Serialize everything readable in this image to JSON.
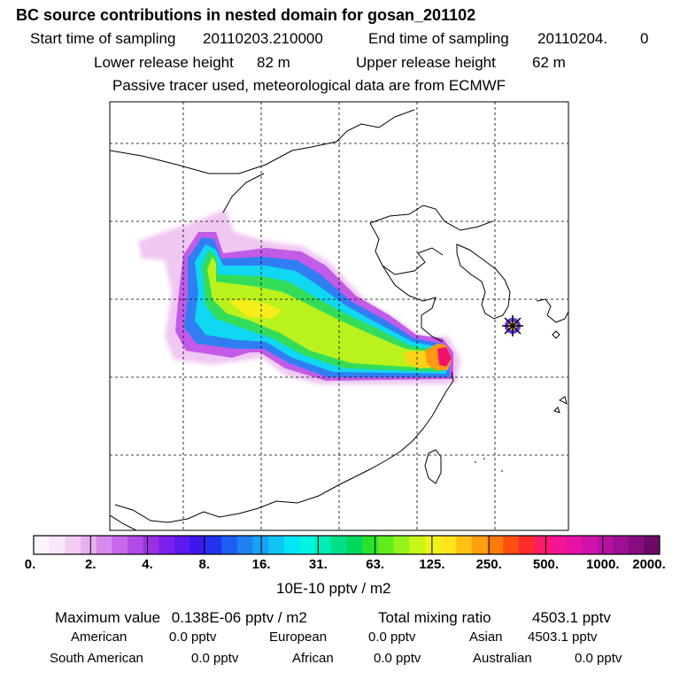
{
  "header": {
    "title": "BC  source contributions in nested domain for gosan_201102",
    "start_label": "Start time of sampling",
    "start_value": "20110203.210000",
    "end_label": "End time of sampling",
    "end_value": "20110204.",
    "end_suffix": "0",
    "lower_label": "Lower release height",
    "lower_value": "82 m",
    "upper_label": "Upper release height",
    "upper_value": "62 m",
    "tracer_line": "Passive tracer used, meteorological data are from ECMWF"
  },
  "chart_data": {
    "type": "heatmap",
    "title": "BC  source contributions in nested domain for gosan_201102",
    "colorbar": {
      "ticks": [
        "0.",
        "2.",
        "4.",
        "8.",
        "16.",
        "31.",
        "63.",
        "125.",
        "250.",
        "500.",
        "1000.",
        "2000."
      ],
      "unit_label": "10E-10 pptv / m2",
      "colors": [
        "#fdf5fd",
        "#f9e6f9",
        "#f2ccf2",
        "#e9b0ef",
        "#d88bec",
        "#c868ea",
        "#b14ae6",
        "#9b2fe2",
        "#7e1ff0",
        "#5c19f0",
        "#3a18ee",
        "#2233f0",
        "#1d5ef2",
        "#1c82f2",
        "#16a3f4",
        "#10c4f6",
        "#00e6f6",
        "#00f5e0",
        "#00ecb5",
        "#00e08a",
        "#00d85e",
        "#27e22e",
        "#5fec1c",
        "#95f21a",
        "#c6f615",
        "#eef21a",
        "#ffe41c",
        "#ffc214",
        "#ffa00e",
        "#ff7a0a",
        "#ff5012",
        "#ff2a2a",
        "#ff1a6c",
        "#f61495",
        "#e612a6",
        "#d112aa",
        "#b910a4",
        "#9e0f94",
        "#860c80",
        "#6a0a64"
      ],
      "segments_per_decade": 4
    },
    "grid": true,
    "receptor_marker": "star",
    "plume_note": "Plume over eastern China, peak near the Yangtze river mouth"
  },
  "footer": {
    "max_label": "Maximum value",
    "max_value": "0.138E-06 pptv / m2",
    "total_label": "Total mixing ratio",
    "total_value": "4503.1 pptv",
    "regions": [
      {
        "name": "American",
        "value": "0.0 pptv"
      },
      {
        "name": "European",
        "value": "0.0 pptv"
      },
      {
        "name": "Asian",
        "value": "4503.1 pptv"
      },
      {
        "name": "South American",
        "value": "0.0 pptv"
      },
      {
        "name": "African",
        "value": "0.0 pptv"
      },
      {
        "name": "Australian",
        "value": "0.0 pptv"
      }
    ]
  }
}
